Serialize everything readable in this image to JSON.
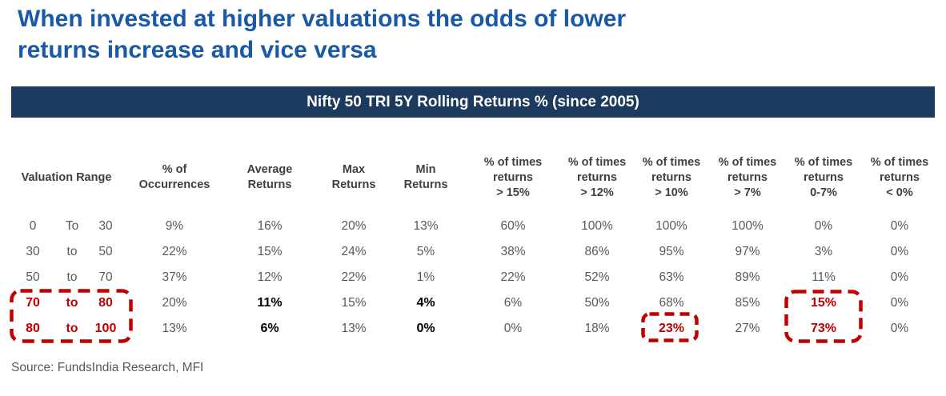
{
  "title": {
    "line1": "When invested at higher valuations the odds of lower",
    "line2": "returns increase and vice versa"
  },
  "banner": "Nifty 50 TRI 5Y Rolling Returns % (since 2005)",
  "table": {
    "headers": [
      {
        "id": "valuation-range",
        "lines": [
          "Valuation Range"
        ]
      },
      {
        "id": "pct-occurrences",
        "lines": [
          "% of",
          "Occurrences"
        ]
      },
      {
        "id": "average-returns",
        "lines": [
          "Average",
          "Returns"
        ]
      },
      {
        "id": "max-returns",
        "lines": [
          "Max",
          "Returns"
        ]
      },
      {
        "id": "min-returns",
        "lines": [
          "Min",
          "Returns"
        ]
      },
      {
        "id": "pct-times-gt-15",
        "lines": [
          "% of times",
          "returns",
          "> 15%"
        ]
      },
      {
        "id": "pct-times-gt-12",
        "lines": [
          "% of times",
          "returns",
          "> 12%"
        ]
      },
      {
        "id": "pct-times-gt-10",
        "lines": [
          "% of times",
          "returns",
          "> 10%"
        ]
      },
      {
        "id": "pct-times-gt-7",
        "lines": [
          "% of times",
          "returns",
          "> 7%"
        ]
      },
      {
        "id": "pct-times-0-7",
        "lines": [
          "% of times",
          "returns",
          "0-7%"
        ]
      },
      {
        "id": "pct-times-lt-0",
        "lines": [
          "% of times",
          "returns",
          "< 0%"
        ]
      }
    ],
    "rows": [
      {
        "range": {
          "from": "0",
          "word": "To",
          "to": "30"
        },
        "range_highlight": false,
        "cells": [
          {
            "v": "9%"
          },
          {
            "v": "16%"
          },
          {
            "v": "20%"
          },
          {
            "v": "13%"
          },
          {
            "v": "60%"
          },
          {
            "v": "100%"
          },
          {
            "v": "100%"
          },
          {
            "v": "100%"
          },
          {
            "v": "0%"
          },
          {
            "v": "0%"
          }
        ]
      },
      {
        "range": {
          "from": "30",
          "word": "to",
          "to": "50"
        },
        "range_highlight": false,
        "cells": [
          {
            "v": "22%"
          },
          {
            "v": "15%"
          },
          {
            "v": "24%"
          },
          {
            "v": "5%"
          },
          {
            "v": "38%"
          },
          {
            "v": "86%"
          },
          {
            "v": "95%"
          },
          {
            "v": "97%"
          },
          {
            "v": "3%"
          },
          {
            "v": "0%"
          }
        ]
      },
      {
        "range": {
          "from": "50",
          "word": "to",
          "to": "70"
        },
        "range_highlight": false,
        "cells": [
          {
            "v": "37%"
          },
          {
            "v": "12%"
          },
          {
            "v": "22%"
          },
          {
            "v": "1%"
          },
          {
            "v": "22%"
          },
          {
            "v": "52%"
          },
          {
            "v": "63%"
          },
          {
            "v": "89%"
          },
          {
            "v": "11%"
          },
          {
            "v": "0%"
          }
        ]
      },
      {
        "range": {
          "from": "70",
          "word": "to",
          "to": "80"
        },
        "range_highlight": true,
        "cells": [
          {
            "v": "20%"
          },
          {
            "v": "11%",
            "style": "bold"
          },
          {
            "v": "15%"
          },
          {
            "v": "4%",
            "style": "bold"
          },
          {
            "v": "6%"
          },
          {
            "v": "50%"
          },
          {
            "v": "68%"
          },
          {
            "v": "85%"
          },
          {
            "v": "15%",
            "style": "red"
          },
          {
            "v": "0%"
          }
        ]
      },
      {
        "range": {
          "from": "80",
          "word": "to",
          "to": "100"
        },
        "range_highlight": true,
        "cells": [
          {
            "v": "13%"
          },
          {
            "v": "6%",
            "style": "bold"
          },
          {
            "v": "13%"
          },
          {
            "v": "0%",
            "style": "bold"
          },
          {
            "v": "0%"
          },
          {
            "v": "18%"
          },
          {
            "v": "23%",
            "style": "red"
          },
          {
            "v": "27%"
          },
          {
            "v": "73%",
            "style": "red"
          },
          {
            "v": "0%"
          }
        ]
      }
    ]
  },
  "highlights": [
    {
      "id": "valuation-range-70-100"
    },
    {
      "id": "gt10-23pct"
    },
    {
      "id": "0to7-15pct-73pct"
    }
  ],
  "source": "Source: FundsIndia Research, MFI",
  "colors": {
    "title_blue": "#1859A8",
    "banner_navy": "#1C3A5E",
    "highlight_red": "#C00000",
    "data_gray": "#595959",
    "header_gray": "#3F3F3F"
  },
  "chart_data": {
    "type": "table",
    "title": "Nifty 50 TRI 5Y Rolling Returns % (since 2005)",
    "columns": [
      "Valuation Range",
      "% of Occurrences",
      "Average Returns",
      "Max Returns",
      "Min Returns",
      "% of times returns > 15%",
      "% of times returns > 12%",
      "% of times returns > 10%",
      "% of times returns > 7%",
      "% of times returns 0-7%",
      "% of times returns < 0%"
    ],
    "rows": [
      [
        "0 To 30",
        "9%",
        "16%",
        "20%",
        "13%",
        "60%",
        "100%",
        "100%",
        "100%",
        "0%",
        "0%"
      ],
      [
        "30 to 50",
        "22%",
        "15%",
        "24%",
        "5%",
        "38%",
        "86%",
        "95%",
        "97%",
        "3%",
        "0%"
      ],
      [
        "50 to 70",
        "37%",
        "12%",
        "22%",
        "1%",
        "22%",
        "52%",
        "63%",
        "89%",
        "11%",
        "0%"
      ],
      [
        "70 to 80",
        "20%",
        "11%",
        "15%",
        "4%",
        "6%",
        "50%",
        "68%",
        "85%",
        "15%",
        "0%"
      ],
      [
        "80 to 100",
        "13%",
        "6%",
        "13%",
        "0%",
        "0%",
        "18%",
        "23%",
        "27%",
        "73%",
        "0%"
      ]
    ]
  }
}
